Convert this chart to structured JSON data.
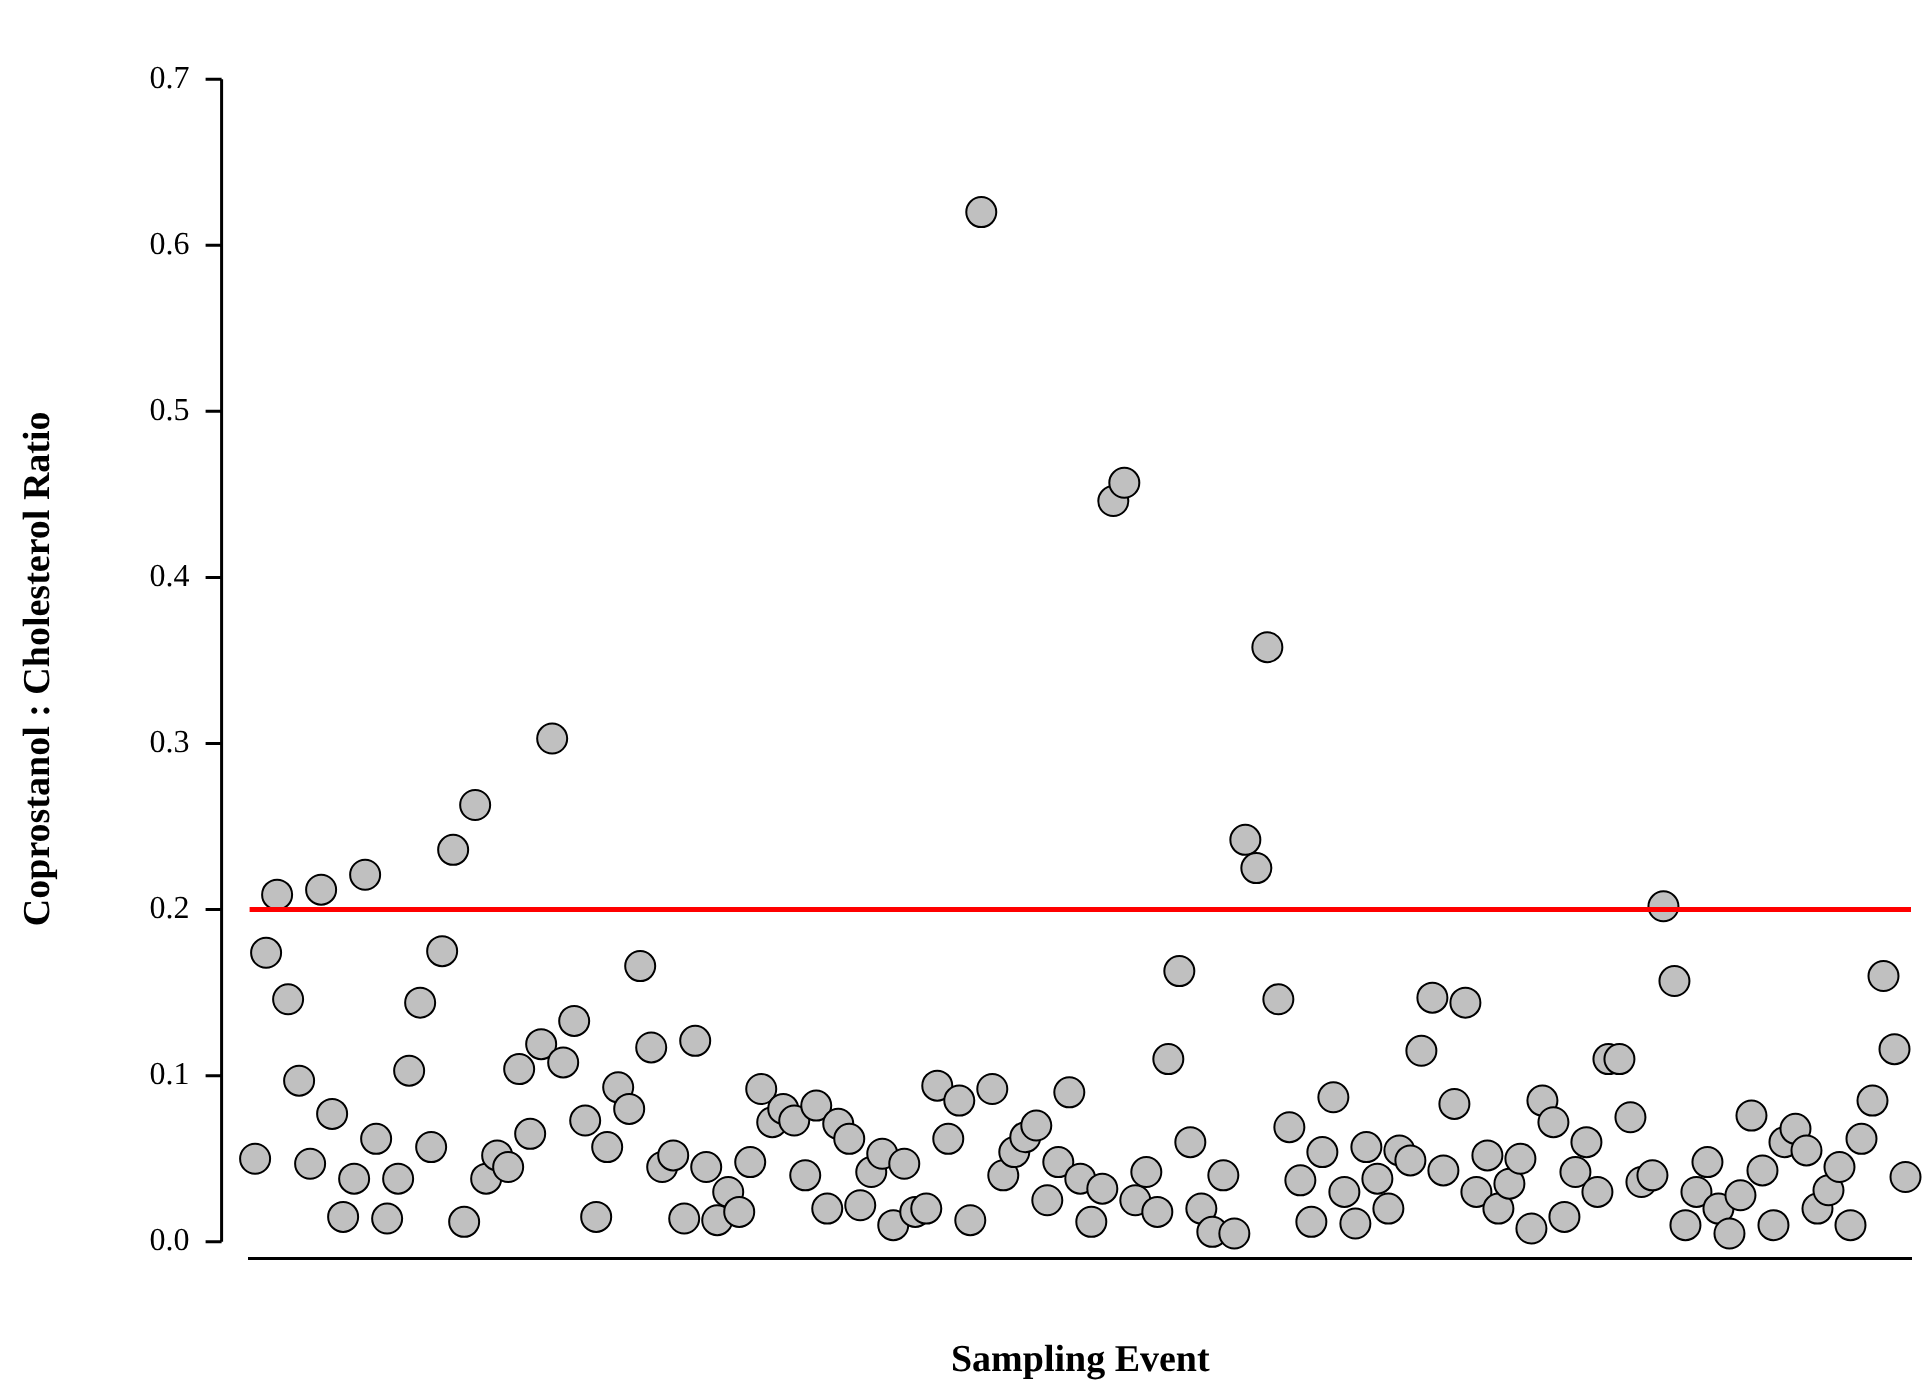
{
  "chart_data": {
    "type": "scatter",
    "xlabel": "Sampling Event",
    "ylabel": "Coprostanol : Cholesterol Ratio",
    "categories": [
      null,
      null,
      null,
      null,
      null,
      null,
      null,
      null,
      null,
      null,
      null,
      null,
      null,
      null,
      null,
      null,
      null,
      null,
      null,
      null,
      null,
      null,
      null,
      null,
      null,
      null,
      null,
      null,
      null,
      null,
      null,
      null,
      null,
      null,
      null,
      null,
      null,
      null,
      null,
      null,
      null,
      null,
      null,
      null,
      null,
      null,
      null,
      null,
      null,
      null,
      null,
      null,
      null,
      null,
      null,
      null,
      null,
      null,
      null,
      null,
      null,
      null,
      null,
      null,
      null,
      null,
      null,
      null,
      null,
      null,
      null,
      null,
      null,
      null,
      null,
      null,
      null,
      null,
      null,
      null,
      null,
      null,
      null,
      null,
      null,
      null,
      null,
      null,
      null,
      null,
      null,
      null,
      null,
      null,
      null,
      null,
      null,
      null,
      null,
      null,
      null,
      null,
      null,
      null,
      null,
      null,
      null,
      null,
      null,
      null,
      null,
      null,
      null,
      null,
      null,
      null,
      null,
      null,
      null,
      null,
      null,
      null,
      null,
      null,
      null,
      null,
      null,
      null,
      null,
      null,
      null,
      null,
      null,
      null,
      null,
      null,
      null,
      null,
      null,
      null,
      null,
      null,
      null,
      null,
      null,
      null,
      null,
      null,
      null,
      null,
      null
    ],
    "series": [
      {
        "color": "#c0c0c0",
        "values": [
          0.05,
          0.174,
          0.209,
          0.146,
          0.097,
          0.047,
          0.212,
          0.077,
          0.015,
          0.038,
          0.221,
          0.062,
          0.014,
          0.038,
          0.103,
          0.144,
          0.057,
          0.175,
          0.236,
          0.012,
          0.263,
          0.038,
          0.052,
          0.045,
          0.104,
          0.065,
          0.119,
          0.303,
          0.108,
          0.133,
          0.073,
          0.015,
          0.057,
          0.093,
          0.08,
          0.166,
          0.117,
          0.045,
          0.052,
          0.014,
          0.121,
          0.045,
          0.013,
          0.03,
          0.018,
          0.048,
          0.092,
          0.072,
          0.08,
          0.073,
          0.04,
          0.082,
          0.02,
          0.071,
          0.062,
          0.022,
          0.042,
          0.053,
          0.01,
          0.047,
          0.018,
          0.02,
          0.094,
          0.062,
          0.085,
          0.013,
          0.62,
          0.092,
          0.04,
          0.054,
          0.063,
          0.07,
          0.025,
          0.048,
          0.09,
          0.038,
          0.012,
          0.032,
          0.446,
          0.457,
          0.025,
          0.042,
          0.018,
          0.11,
          0.163,
          0.06,
          0.02,
          0.006,
          0.04,
          0.005,
          0.242,
          0.225,
          0.358,
          0.146,
          0.069,
          0.037,
          0.012,
          0.054,
          0.087,
          0.03,
          0.011,
          0.057,
          0.038,
          0.02,
          0.055,
          0.049,
          0.115,
          0.147,
          0.043,
          0.083,
          0.144,
          0.03,
          0.052,
          0.02,
          0.035,
          0.05,
          0.008,
          0.085,
          0.072,
          0.015,
          0.042,
          0.06,
          0.03,
          0.11,
          0.11,
          0.075,
          0.036,
          0.04,
          0.202,
          0.157,
          0.01,
          0.03,
          0.048,
          0.02,
          0.005,
          0.028,
          0.076,
          0.043,
          0.01,
          0.06,
          0.068,
          0.055,
          0.02,
          0.031,
          0.045,
          0.01,
          0.062,
          0.085,
          0.16,
          0.116,
          0.039
        ]
      }
    ],
    "ylim": [
      -0.01,
      0.7
    ],
    "yticks": [
      {
        "value": 0,
        "label": "0.0"
      },
      {
        "value": 0.1,
        "label": "0.1"
      },
      {
        "value": 0.2,
        "label": "0.2"
      },
      {
        "value": 0.3,
        "label": "0.3"
      },
      {
        "value": 0.4,
        "label": "0.4"
      },
      {
        "value": 0.5,
        "label": "0.5"
      },
      {
        "value": 0.6,
        "label": "0.6"
      },
      {
        "value": 0.7,
        "label": "0.7"
      }
    ],
    "ref_lines": [
      {
        "axis": "y",
        "value": 0.2,
        "color": "#ff0000"
      }
    ],
    "marker": "circle",
    "grid": false,
    "legend": false,
    "tick_labels": "y"
  }
}
